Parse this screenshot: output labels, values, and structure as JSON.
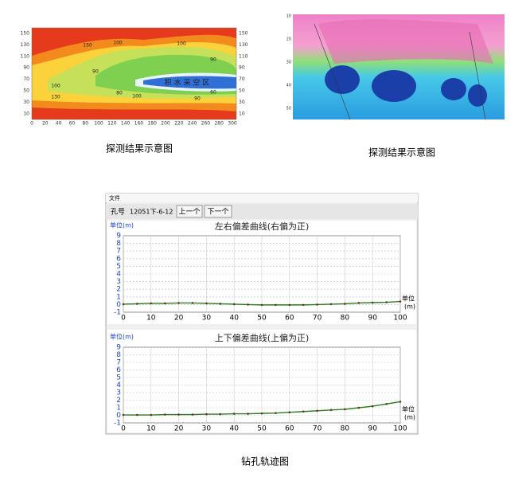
{
  "figures": [
    {
      "map": {
        "y_labels": [
          150,
          130,
          110,
          90,
          70,
          50,
          30,
          10
        ],
        "x_labels": [
          0,
          20,
          40,
          60,
          80,
          100,
          120,
          140,
          160,
          180,
          200,
          220,
          240,
          260,
          280,
          300
        ],
        "contour_labels": [
          150,
          100,
          100,
          90,
          90,
          100,
          80,
          100,
          130,
          90,
          60
        ],
        "area_label": "积 水 采 空 区"
      },
      "caption": "探测结果示意图"
    },
    {
      "map": {
        "y_labels": [
          10,
          20,
          30,
          40,
          50
        ]
      },
      "caption": "探测结果示意图"
    }
  ],
  "window": {
    "menu": "文件",
    "hole_label": "孔号",
    "hole_id": "12051下-6-12",
    "prev": "上一个",
    "next": "下一个"
  },
  "chart_data": [
    {
      "type": "line",
      "title": "左右偏差曲线(右偏为正)",
      "ylabel": "单位(m)",
      "xlabel": "单位",
      "xunit": "(m)",
      "x": [
        0,
        5,
        10,
        15,
        20,
        25,
        30,
        35,
        40,
        45,
        50,
        55,
        60,
        65,
        70,
        75,
        80,
        85,
        90,
        95,
        100
      ],
      "values": [
        0.05,
        0.1,
        0.15,
        0.15,
        0.2,
        0.2,
        0.15,
        0.1,
        0.05,
        0,
        -0.05,
        -0.05,
        -0.05,
        -0.05,
        0,
        0.05,
        0.1,
        0.2,
        0.25,
        0.3,
        0.4
      ],
      "color": "#2e7d1e",
      "marker_color": "#5a3a1a",
      "xlim": [
        0,
        100
      ],
      "xticks": [
        0,
        10,
        20,
        30,
        40,
        50,
        60,
        70,
        80,
        90,
        100
      ],
      "ylim": [
        -1,
        9
      ],
      "yticks": [
        -1,
        0,
        1,
        2,
        3,
        4,
        5,
        6,
        7,
        8,
        9
      ],
      "grid": true
    },
    {
      "type": "line",
      "title": "上下偏差曲线(上偏为正)",
      "ylabel": "单位(m)",
      "xlabel": "单位",
      "xunit": "(m)",
      "x": [
        0,
        5,
        10,
        15,
        20,
        25,
        30,
        35,
        40,
        45,
        50,
        55,
        60,
        65,
        70,
        75,
        80,
        85,
        90,
        95,
        100
      ],
      "values": [
        0.05,
        0.05,
        0.05,
        0.1,
        0.1,
        0.1,
        0.15,
        0.15,
        0.2,
        0.2,
        0.25,
        0.3,
        0.4,
        0.5,
        0.6,
        0.7,
        0.8,
        1.0,
        1.2,
        1.5,
        1.8
      ],
      "color": "#2e7d1e",
      "marker_color": "#5a3a1a",
      "xlim": [
        0,
        100
      ],
      "xticks": [
        0,
        10,
        20,
        30,
        40,
        50,
        60,
        70,
        80,
        90,
        100
      ],
      "ylim": [
        -1,
        9
      ],
      "yticks": [
        -1,
        0,
        1,
        2,
        3,
        4,
        5,
        6,
        7,
        8,
        9
      ],
      "grid": true
    }
  ],
  "caption3": "钻孔轨迹图"
}
